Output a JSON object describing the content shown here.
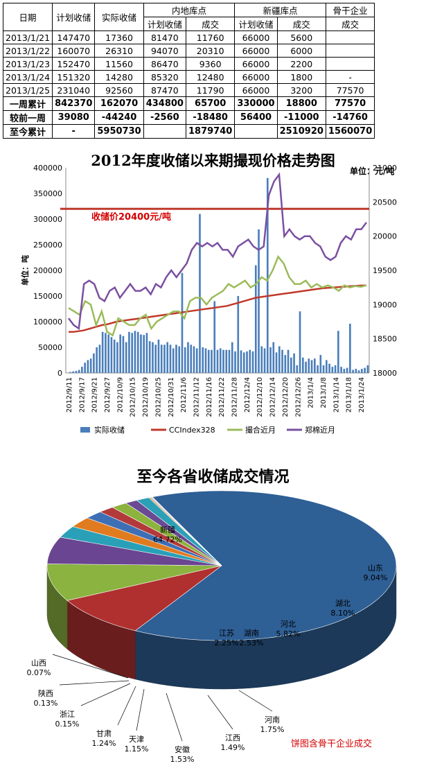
{
  "table": {
    "header1": [
      "日期",
      "计划收储",
      "实际收储",
      "内地库点",
      "新疆库点",
      "骨干企业"
    ],
    "header2": [
      "计划收储",
      "成交",
      "计划收储",
      "成交",
      "成交"
    ],
    "rows": [
      [
        "2013/1/21",
        "147470",
        "17360",
        "81470",
        "11760",
        "66000",
        "5600",
        ""
      ],
      [
        "2013/1/22",
        "160070",
        "26310",
        "94070",
        "20310",
        "66000",
        "6000",
        ""
      ],
      [
        "2013/1/23",
        "152470",
        "11560",
        "86470",
        "9360",
        "66000",
        "2200",
        ""
      ],
      [
        "2013/1/24",
        "151320",
        "14280",
        "85320",
        "12480",
        "66000",
        "1800",
        "-"
      ],
      [
        "2013/1/25",
        "231040",
        "92560",
        "87470",
        "11790",
        "66000",
        "3200",
        "77570"
      ]
    ],
    "summary": [
      [
        "一周累计",
        "842370",
        "162070",
        "434800",
        "65700",
        "330000",
        "18800",
        "77570"
      ],
      [
        "较前一周",
        "39080",
        "-44240",
        "-2560",
        "-18480",
        "56400",
        "-11000",
        "-14760"
      ],
      [
        "至今累计",
        "-",
        "5950730",
        "",
        "1879740",
        "",
        "2510920",
        "1560070"
      ]
    ]
  },
  "line_chart_title": "2012年度收储以来期撮现价格走势图",
  "unit_label": "单位：元/吨",
  "pie_title": "至今各省收储成交情况",
  "pie_note": "饼图含骨干企业成交",
  "colors": {
    "bar": "#4a7ebb",
    "ccindex": "#c0392b",
    "cuo": "#9bbb59",
    "zheng": "#7a4fa0",
    "ref": "#c0392b"
  },
  "chart_data": [
    {
      "type": "bar",
      "title": "2012年度收储以来期撮现价格走势图",
      "y_left_label": "单位：吨",
      "ylim_left": [
        0,
        400000
      ],
      "ylim_right": [
        18000,
        21000
      ],
      "y_left_ticks": [
        "0",
        "50000",
        "100000",
        "150000",
        "200000",
        "250000",
        "300000",
        "350000",
        "400000"
      ],
      "y_right_ticks": [
        "18000",
        "18500",
        "19000",
        "19500",
        "20000",
        "20500",
        "21000"
      ],
      "x_ticks": [
        "2012/9/11",
        "2012/9/17",
        "2012/9/21",
        "2012/9/27",
        "2012/10/9",
        "2012/10/15",
        "2012/10/19",
        "2012/10/25",
        "2012/10/31",
        "2012/11/6",
        "2012/11/12",
        "2012/11/16",
        "2012/11/22",
        "2012/11/28",
        "2012/12/4",
        "2012/12/10",
        "2012/12/14",
        "2012/12/20",
        "2012/12/26",
        "2013/1/4",
        "2013/1/8",
        "2013/1/14",
        "2013/1/18",
        "2013/1/24"
      ],
      "annotation": "收储价20400元/吨",
      "reference_line": 20400,
      "series": [
        {
          "name": "实际收储",
          "axis": "left",
          "values": [
            0,
            2000,
            3000,
            4000,
            6000,
            12000,
            20000,
            25000,
            28000,
            38000,
            50000,
            55000,
            80000,
            78000,
            75000,
            70000,
            65000,
            60000,
            75000,
            72000,
            60000,
            80000,
            78000,
            82000,
            80000,
            75000,
            74000,
            78000,
            62000,
            60000,
            55000,
            65000,
            55000,
            55000,
            60000,
            55000,
            48000,
            55000,
            52000,
            195000,
            50000,
            60000,
            55000,
            52000,
            48000,
            310000,
            50000,
            48000,
            45000,
            45000,
            140000,
            45000,
            48000,
            45000,
            45000,
            45000,
            60000,
            42000,
            150000,
            44000,
            40000,
            42000,
            45000,
            42000,
            210000,
            280000,
            52000,
            48000,
            380000,
            50000,
            60000,
            40000,
            52000,
            45000,
            35000,
            45000,
            30000,
            38000,
            15000,
            120000,
            30000,
            22000,
            28000,
            25000,
            28000,
            15000,
            35000,
            15000,
            25000,
            18000,
            12000,
            15000,
            82000,
            12000,
            8000,
            10000,
            96000,
            6000,
            8000,
            5000,
            8000,
            10000,
            15000
          ]
        },
        {
          "name": "CCIndex328",
          "axis": "right",
          "values": [
            18600,
            18600,
            18610,
            18620,
            18640,
            18660,
            18680,
            18700,
            18710,
            18730,
            18750,
            18760,
            18770,
            18780,
            18790,
            18800,
            18810,
            18820,
            18830,
            18840,
            18850,
            18860,
            18870,
            18880,
            18890,
            18900,
            18910,
            18920,
            18930,
            18940,
            18950,
            18960,
            18970,
            18980,
            19000,
            19020,
            19040,
            19060,
            19080,
            19100,
            19110,
            19120,
            19130,
            19140,
            19150,
            19160,
            19170,
            19180,
            19190,
            19200,
            19210,
            19220,
            19230,
            19240,
            19245,
            19250,
            19255,
            19260,
            19265,
            19270,
            19275,
            19278,
            19280
          ]
        },
        {
          "name": "撮合近月",
          "axis": "right",
          "values": [
            18950,
            18900,
            18850,
            19050,
            19000,
            18700,
            18900,
            18600,
            18550,
            18800,
            18750,
            18700,
            18700,
            18800,
            18850,
            18650,
            18750,
            18800,
            18850,
            18900,
            18900,
            18800,
            19050,
            19100,
            19100,
            19000,
            19100,
            19150,
            19200,
            19300,
            19250,
            19300,
            19350,
            19250,
            19300,
            19400,
            19350,
            19500,
            19700,
            19600,
            19400,
            19300,
            19300,
            19350,
            19250,
            19300,
            19250,
            19280,
            19250,
            19200,
            19280,
            19250,
            19270,
            19260,
            19280
          ]
        },
        {
          "name": "郑棉近月",
          "axis": "right",
          "values": [
            18800,
            18700,
            18650,
            19300,
            19350,
            19300,
            19100,
            19050,
            19200,
            19250,
            19100,
            19200,
            19300,
            19200,
            19200,
            19250,
            19150,
            19300,
            19250,
            19400,
            19500,
            19400,
            19500,
            19600,
            19800,
            19900,
            19850,
            19900,
            19850,
            19900,
            19800,
            19800,
            19700,
            19850,
            19900,
            19950,
            19850,
            19800,
            19850,
            20600,
            20800,
            20900,
            20000,
            20100,
            20000,
            19950,
            20000,
            20000,
            19900,
            19850,
            19700,
            19650,
            19700,
            19900,
            20000,
            19950,
            20100,
            20100,
            20200
          ]
        }
      ]
    },
    {
      "type": "pie",
      "title": "至今各省收储成交情况",
      "slices": [
        {
          "label": "新疆",
          "pct": "64.72%",
          "value": 64.72,
          "color": "#2e5f95"
        },
        {
          "label": "山东",
          "pct": "9.04%",
          "value": 9.04,
          "color": "#b03030"
        },
        {
          "label": "湖北",
          "pct": "8.10%",
          "value": 8.1,
          "color": "#8ab33f"
        },
        {
          "label": "河北",
          "pct": "5.82%",
          "value": 5.82,
          "color": "#6a4591"
        },
        {
          "label": "湖南",
          "pct": "2.53%",
          "value": 2.53,
          "color": "#2aa0b8"
        },
        {
          "label": "江苏",
          "pct": "2.25%",
          "value": 2.25,
          "color": "#e07b20"
        },
        {
          "label": "河南",
          "pct": "1.75%",
          "value": 1.75,
          "color": "#3d6fb5"
        },
        {
          "label": "江西",
          "pct": "1.49%",
          "value": 1.49,
          "color": "#b33a3a"
        },
        {
          "label": "安徽",
          "pct": "1.53%",
          "value": 1.53,
          "color": "#8db33f"
        },
        {
          "label": "天津",
          "pct": "1.15%",
          "value": 1.15,
          "color": "#6b4a94"
        },
        {
          "label": "甘肃",
          "pct": "1.24%",
          "value": 1.24,
          "color": "#2ca0b6"
        },
        {
          "label": "浙江",
          "pct": "0.15%",
          "value": 0.15,
          "color": "#e38a2c"
        },
        {
          "label": "陕西",
          "pct": "0.13%",
          "value": 0.13,
          "color": "#9ab7df"
        },
        {
          "label": "山西",
          "pct": "0.07%",
          "value": 0.07,
          "color": "#e2a3a3"
        }
      ]
    }
  ]
}
